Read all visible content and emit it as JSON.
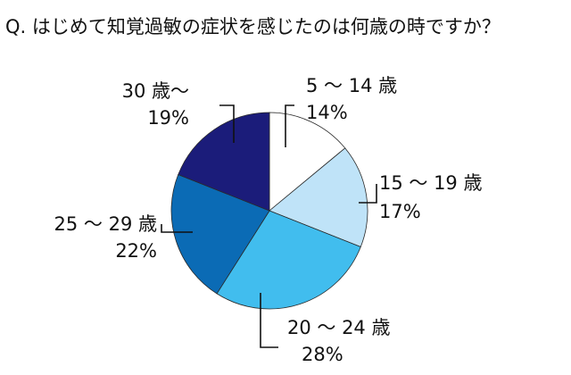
{
  "chart_data": {
    "type": "pie",
    "title": "Q. はじめて知覚過敏の症状を感じたのは何歳の時ですか？",
    "start_angle_deg": 0,
    "direction": "clockwise",
    "slices": [
      {
        "label": "5 ～ 14 歳",
        "value": 14,
        "value_label": "14%",
        "color": "#ffffff"
      },
      {
        "label": "15 ～ 19 歳",
        "value": 17,
        "value_label": "17%",
        "color": "#bfe3f8"
      },
      {
        "label": "20 ～ 24 歳",
        "value": 28,
        "value_label": "28%",
        "color": "#41bdee"
      },
      {
        "label": "25 ～ 29 歳",
        "value": 22,
        "value_label": "22%",
        "color": "#0b6bb5"
      },
      {
        "label": "30 歳～",
        "value": 19,
        "value_label": "19%",
        "color": "#1b1c7a"
      }
    ]
  }
}
